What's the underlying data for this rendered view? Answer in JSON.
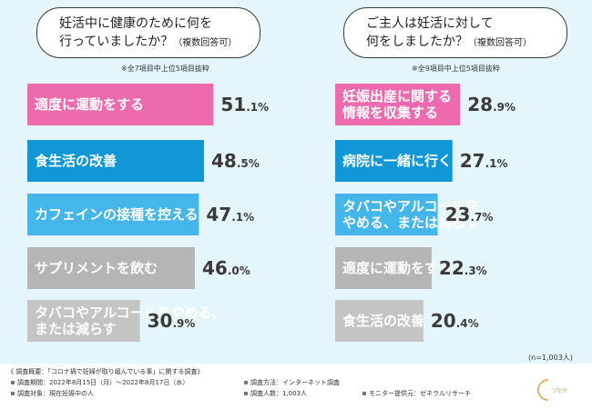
{
  "chart_data": [
    {
      "type": "bar",
      "title": "妊活中に健康のために何を行っていましたか？",
      "title_line1": "妊活中に健康のために何を",
      "title_line2": "行っていましたか？",
      "title_suffix": "（複数回答可）",
      "note": "※全7項目中上位5項目抜粋",
      "unit": "%",
      "categories": [
        "適度に運動をする",
        "食生活の改善",
        "カフェインの接種を控える",
        "サプリメントを飲む",
        "タバコやアルコールをやめる、または減らす"
      ],
      "category_lines": [
        [
          "適度に運動をする"
        ],
        [
          "食生活の改善"
        ],
        [
          "カフェインの接種を控える"
        ],
        [
          "サプリメントを飲む"
        ],
        [
          "タバコやアルコールをやめる、",
          "または減らす"
        ]
      ],
      "values": [
        51.1,
        48.5,
        47.1,
        46.0,
        30.9
      ],
      "colors": [
        "#ee6aae",
        "#1297d6",
        "#45b6ea",
        "#b5b5b5",
        "#c4c4c4"
      ]
    },
    {
      "type": "bar",
      "title": "ご主人は妊活に対して何をしましたか？",
      "title_line1": "ご主人は妊活に対して",
      "title_line2": "何をしましたか？",
      "title_suffix": "（複数回答可）",
      "note": "※全9項目中上位5項目抜粋",
      "unit": "%",
      "categories": [
        "妊娠出産に関する情報を収集する",
        "病院に一緒に行く",
        "タバコやアルコールをやめる、または減らす",
        "適度に運動をする",
        "食生活の改善"
      ],
      "category_lines": [
        [
          "妊娠出産に関する",
          "情報を収集する"
        ],
        [
          "病院に一緒に行く"
        ],
        [
          "タバコやアルコールを",
          "やめる、または減らす"
        ],
        [
          "適度に運動をする"
        ],
        [
          "食生活の改善"
        ]
      ],
      "values": [
        28.9,
        27.1,
        23.7,
        22.3,
        20.4
      ],
      "colors": [
        "#ee6aae",
        "#1297d6",
        "#45b6ea",
        "#b5b5b5",
        "#c4c4c4"
      ]
    }
  ],
  "sample_size": "(n=1,003人)",
  "footer": {
    "overview": "《 調査概要：「コロナ禍で妊婦が取り組んでいる事」に関する調査》",
    "period": "調査期間：2022年8月15日（月）～2022年8月17日（水）",
    "method": "調査方法：インターネット調査",
    "target": "調査対象：現在妊娠中の人",
    "respondents": "調査人数：1,003人",
    "provider": "モニター提供元：ゼネラルリサーチ"
  },
  "logo_text": "つながる未来"
}
